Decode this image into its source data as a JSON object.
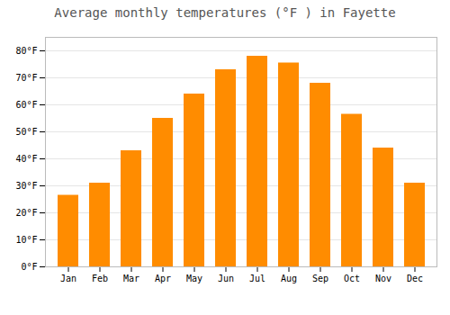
{
  "chart_data": {
    "type": "bar",
    "title": "Average monthly temperatures (°F ) in Fayette",
    "categories": [
      "Jan",
      "Feb",
      "Mar",
      "Apr",
      "May",
      "Jun",
      "Jul",
      "Aug",
      "Sep",
      "Oct",
      "Nov",
      "Dec"
    ],
    "values": [
      26.5,
      31,
      43,
      55,
      64,
      73,
      78,
      75.5,
      68,
      56.5,
      44,
      31
    ],
    "color": "#FF8C00",
    "ylim": [
      0,
      85
    ],
    "yticks": [
      {
        "value": 0,
        "label": "0°F"
      },
      {
        "value": 10,
        "label": "10°F"
      },
      {
        "value": 20,
        "label": "20°F"
      },
      {
        "value": 30,
        "label": "30°F"
      },
      {
        "value": 40,
        "label": "40°F"
      },
      {
        "value": 50,
        "label": "50°F"
      },
      {
        "value": 60,
        "label": "60°F"
      },
      {
        "value": 70,
        "label": "70°F"
      },
      {
        "value": 80,
        "label": "80°F"
      }
    ],
    "grid": true
  }
}
